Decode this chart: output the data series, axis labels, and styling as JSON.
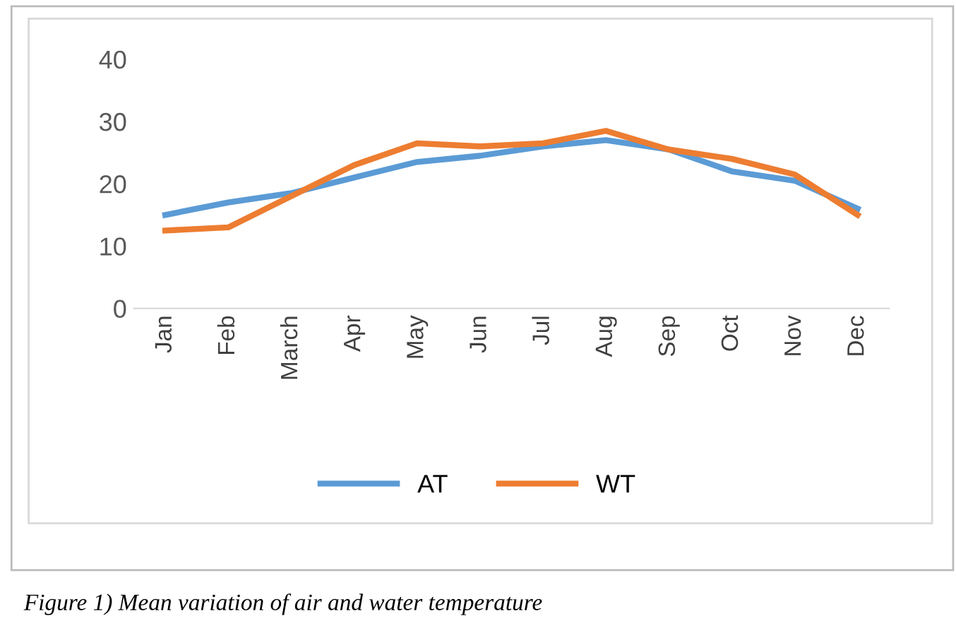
{
  "chart_data": {
    "type": "line",
    "categories": [
      "Jan",
      "Feb",
      "March",
      "Apr",
      "May",
      "Jun",
      "Jul",
      "Aug",
      "Sep",
      "Oct",
      "Nov",
      "Dec"
    ],
    "series": [
      {
        "name": "AT",
        "color": "#5b9bd5",
        "values": [
          15,
          17,
          18.5,
          21,
          23.5,
          24.5,
          26,
          27,
          25.5,
          22,
          20.5,
          16
        ]
      },
      {
        "name": "WT",
        "color": "#ed7d31",
        "values": [
          12.5,
          13,
          18,
          23,
          26.5,
          26,
          26.5,
          28.5,
          25.5,
          24,
          21.5,
          15
        ]
      }
    ],
    "ylim": [
      0,
      40
    ],
    "yticks": [
      0,
      10,
      20,
      30,
      40
    ],
    "grid": false,
    "legend": "bottom",
    "marker": "none",
    "line_style": "solid",
    "annotations": [
      "Figure 1) Mean variation of air and water temperature"
    ]
  }
}
